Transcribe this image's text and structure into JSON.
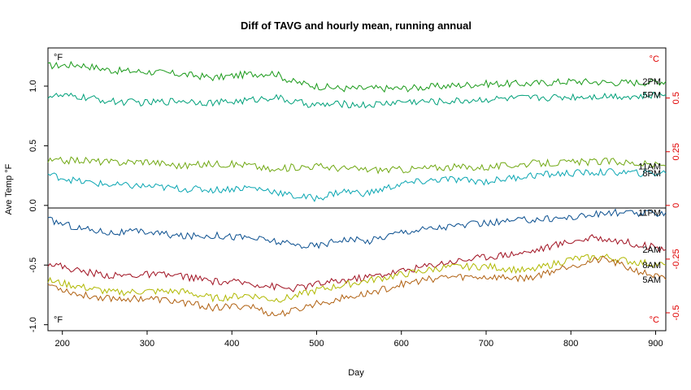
{
  "chart_data": {
    "type": "line",
    "title": "Diff of TAVG and hourly mean, running annual",
    "xlabel": "Day",
    "ylabel": "Ave Temp °F",
    "xlim": [
      183,
      912
    ],
    "ylim": [
      -1.05,
      1.32
    ],
    "x_ticks": [
      "200",
      "300",
      "400",
      "500",
      "600",
      "700",
      "800",
      "900"
    ],
    "y_ticks_left": [
      "-1.0",
      "-0.5",
      "0.0",
      "0.5",
      "1.0"
    ],
    "y_ticks_right": [
      "-0.5",
      "-0.25",
      "0",
      "0.25",
      "0.5"
    ],
    "unit_label_left_top": "°F",
    "unit_label_left_bottom": "°F",
    "unit_label_right_top": "°C",
    "unit_label_right_bottom": "°C",
    "zero_line": true,
    "colors": {
      "right_axis": "#e00000"
    },
    "series": [
      {
        "name": "2PM",
        "color": "#1a9a1a",
        "x": [
          183,
          220,
          260,
          300,
          340,
          380,
          420,
          450,
          470,
          500,
          530,
          560,
          600,
          650,
          700,
          750,
          800,
          850,
          880,
          912
        ],
        "y": [
          1.17,
          1.18,
          1.13,
          1.12,
          1.1,
          1.07,
          1.1,
          1.11,
          1.04,
          1.0,
          0.98,
          0.98,
          0.98,
          1.0,
          1.02,
          1.02,
          1.04,
          1.03,
          1.03,
          1.04
        ]
      },
      {
        "name": "5PM",
        "color": "#00a07a",
        "x": [
          183,
          220,
          260,
          300,
          340,
          380,
          420,
          450,
          470,
          500,
          530,
          560,
          600,
          650,
          700,
          750,
          800,
          850,
          880,
          912
        ],
        "y": [
          0.92,
          0.91,
          0.87,
          0.86,
          0.88,
          0.86,
          0.88,
          0.91,
          0.87,
          0.84,
          0.85,
          0.84,
          0.87,
          0.87,
          0.89,
          0.9,
          0.91,
          0.92,
          0.91,
          0.93
        ]
      },
      {
        "name": "11AM",
        "color": "#70a812",
        "x": [
          183,
          220,
          260,
          300,
          340,
          380,
          420,
          450,
          470,
          500,
          530,
          560,
          600,
          650,
          700,
          750,
          800,
          850,
          880,
          912
        ],
        "y": [
          0.37,
          0.38,
          0.36,
          0.37,
          0.33,
          0.35,
          0.34,
          0.29,
          0.32,
          0.33,
          0.31,
          0.3,
          0.3,
          0.32,
          0.32,
          0.35,
          0.36,
          0.37,
          0.35,
          0.33
        ]
      },
      {
        "name": "8PM",
        "color": "#0aa6b2",
        "x": [
          183,
          220,
          260,
          300,
          340,
          380,
          420,
          450,
          470,
          500,
          530,
          560,
          600,
          650,
          700,
          750,
          800,
          850,
          880,
          912
        ],
        "y": [
          0.26,
          0.2,
          0.17,
          0.16,
          0.14,
          0.13,
          0.15,
          0.12,
          0.08,
          0.06,
          0.12,
          0.1,
          0.18,
          0.22,
          0.2,
          0.25,
          0.27,
          0.28,
          0.27,
          0.27
        ]
      },
      {
        "name": "11PM",
        "color": "#0a4f8f",
        "x": [
          183,
          220,
          260,
          300,
          340,
          380,
          420,
          450,
          470,
          500,
          530,
          560,
          600,
          650,
          700,
          750,
          800,
          850,
          880,
          912
        ],
        "y": [
          -0.12,
          -0.19,
          -0.23,
          -0.22,
          -0.26,
          -0.25,
          -0.27,
          -0.3,
          -0.33,
          -0.34,
          -0.28,
          -0.3,
          -0.22,
          -0.18,
          -0.15,
          -0.12,
          -0.1,
          -0.06,
          -0.07,
          -0.06
        ]
      },
      {
        "name": "2AM",
        "color": "#a01020",
        "x": [
          183,
          220,
          260,
          300,
          340,
          380,
          420,
          450,
          470,
          500,
          530,
          560,
          600,
          650,
          700,
          750,
          800,
          830,
          860,
          912
        ],
        "y": [
          -0.48,
          -0.55,
          -0.59,
          -0.58,
          -0.59,
          -0.64,
          -0.65,
          -0.68,
          -0.7,
          -0.66,
          -0.63,
          -0.6,
          -0.55,
          -0.48,
          -0.43,
          -0.39,
          -0.3,
          -0.27,
          -0.3,
          -0.37
        ]
      },
      {
        "name": "8AM",
        "color": "#b0b800",
        "x": [
          183,
          220,
          260,
          300,
          340,
          380,
          420,
          450,
          470,
          500,
          530,
          560,
          600,
          650,
          700,
          750,
          800,
          840,
          870,
          912
        ],
        "y": [
          -0.63,
          -0.68,
          -0.73,
          -0.72,
          -0.72,
          -0.78,
          -0.75,
          -0.79,
          -0.77,
          -0.71,
          -0.67,
          -0.63,
          -0.58,
          -0.52,
          -0.51,
          -0.55,
          -0.45,
          -0.43,
          -0.47,
          -0.5
        ]
      },
      {
        "name": "5AM",
        "color": "#b06010",
        "x": [
          183,
          220,
          260,
          300,
          340,
          380,
          420,
          450,
          470,
          500,
          530,
          560,
          600,
          650,
          700,
          750,
          800,
          840,
          870,
          912
        ],
        "y": [
          -0.66,
          -0.75,
          -0.78,
          -0.78,
          -0.81,
          -0.86,
          -0.84,
          -0.92,
          -0.89,
          -0.82,
          -0.78,
          -0.74,
          -0.66,
          -0.6,
          -0.6,
          -0.61,
          -0.5,
          -0.45,
          -0.53,
          -0.62
        ]
      }
    ]
  }
}
